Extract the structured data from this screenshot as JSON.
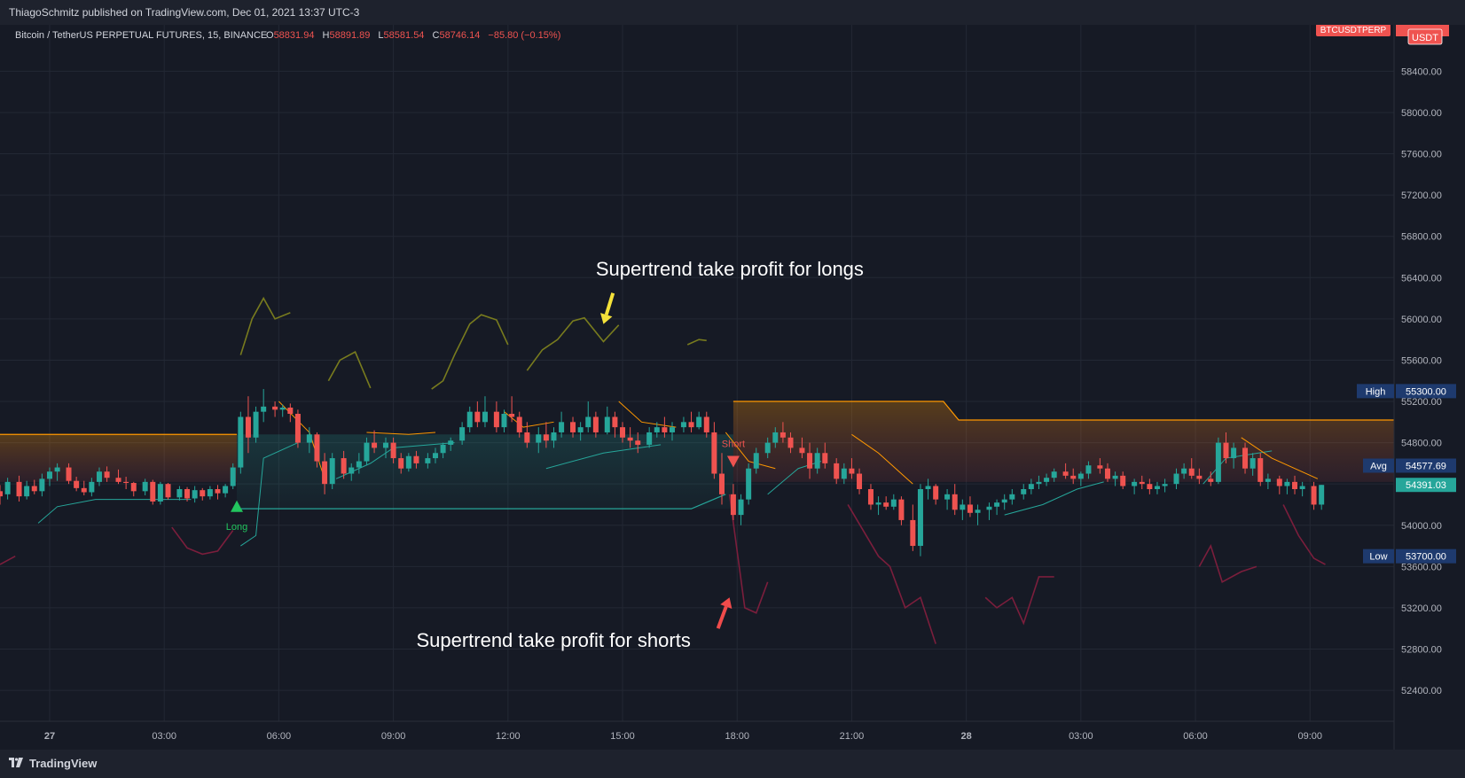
{
  "header": {
    "published": "ThiagoSchmitz published on TradingView.com, Dec 01, 2021 13:37 UTC-3"
  },
  "footer": {
    "brand": "TradingView"
  },
  "colors": {
    "up": "#26a69a",
    "down": "#ef5350",
    "supertrend_up": "#26a69a",
    "supertrend_down": "#ff9800",
    "tp_long": "#787b1e",
    "tp_short": "#7b1e3c",
    "background": "#161a25",
    "grid": "#232834"
  },
  "chart_data": {
    "type": "candlestick",
    "title": "Bitcoin / TetherUS PERPETUAL FUTURES, 15, BINANCE",
    "ohlc_labels": {
      "o_key": "O",
      "o": "58831.94",
      "h_key": "H",
      "h": "58891.89",
      "l_key": "L",
      "l": "58581.54",
      "c_key": "C",
      "c": "58746.14",
      "chg": "−85.80 (−0.15%)"
    },
    "symbol_badge": "BTCUSDTPERP",
    "currency_badge": "USDT",
    "y_ticks": [
      58400,
      58000,
      57600,
      57200,
      56800,
      56400,
      56000,
      55600,
      55200,
      54800,
      54400,
      54000,
      53600,
      53200,
      52800,
      52400
    ],
    "y_tick_labels": [
      "58400.00",
      "58000.00",
      "57600.00",
      "57200.00",
      "56800.00",
      "56400.00",
      "56000.00",
      "55600.00",
      "55200.00",
      "54800.00",
      "54400.00",
      "54000.00",
      "53600.00",
      "53200.00",
      "52800.00",
      "52400.00"
    ],
    "ylim": [
      52100,
      58850
    ],
    "x_ticks": [
      {
        "label": "27",
        "hour": 0
      },
      {
        "label": "03:00",
        "hour": 3
      },
      {
        "label": "06:00",
        "hour": 6
      },
      {
        "label": "09:00",
        "hour": 9
      },
      {
        "label": "12:00",
        "hour": 12
      },
      {
        "label": "15:00",
        "hour": 15
      },
      {
        "label": "18:00",
        "hour": 18
      },
      {
        "label": "21:00",
        "hour": 21
      },
      {
        "label": "28",
        "hour": 24
      },
      {
        "label": "03:00",
        "hour": 27
      },
      {
        "label": "06:00",
        "hour": 30
      },
      {
        "label": "09:00",
        "hour": 33
      }
    ],
    "xlim": [
      -1.3,
      35.2
    ],
    "price_markers": [
      {
        "name": "High",
        "value": 55300,
        "label": "55300.00"
      },
      {
        "name": "Avg",
        "value": 54577.69,
        "label": "54577.69"
      },
      {
        "name": "",
        "value": 54391.03,
        "label": "54391.03",
        "current": true
      },
      {
        "name": "Low",
        "value": 53700,
        "label": "53700.00"
      }
    ],
    "signals": [
      {
        "type": "Long",
        "label": "Long",
        "hour": 4.9,
        "value": 54180
      },
      {
        "type": "Short",
        "label": "Short",
        "hour": 17.9,
        "value": 54620
      }
    ],
    "annotations": [
      {
        "text": "Supertrend take profit for longs",
        "arrow_from": [
          14.75,
          56250
        ],
        "arrow_to": [
          14.5,
          55950
        ]
      },
      {
        "text": "Supertrend take profit for shorts",
        "arrow_from": [
          17.5,
          53000
        ],
        "arrow_to": [
          17.8,
          53300
        ]
      }
    ],
    "step_lines": {
      "orange_upper": [
        [
          -1.3,
          54880
        ],
        [
          4.9,
          54880
        ],
        [
          4.9,
          null
        ],
        [
          17.9,
          null
        ],
        [
          17.9,
          55200
        ],
        [
          23.4,
          55200
        ],
        [
          23.8,
          55020
        ],
        [
          35.2,
          55020
        ]
      ],
      "teal_lower": [
        [
          4.9,
          54160
        ],
        [
          16.8,
          54160
        ],
        [
          17.7,
          54300
        ],
        [
          17.9,
          null
        ]
      ]
    },
    "candles": [
      [
        -1.3,
        54330,
        54390,
        54200,
        54280
      ],
      [
        -1.1,
        54300,
        54460,
        54250,
        54420
      ],
      [
        -0.8,
        54420,
        54480,
        54230,
        54280
      ],
      [
        -0.6,
        54280,
        54430,
        54250,
        54380
      ],
      [
        -0.4,
        54380,
        54440,
        54300,
        54330
      ],
      [
        -0.2,
        54330,
        54500,
        54280,
        54450
      ],
      [
        0.0,
        54450,
        54560,
        54380,
        54520
      ],
      [
        0.2,
        54520,
        54600,
        54430,
        54560
      ],
      [
        0.5,
        54560,
        54600,
        54400,
        54430
      ],
      [
        0.7,
        54430,
        54470,
        54330,
        54360
      ],
      [
        0.9,
        54360,
        54430,
        54290,
        54320
      ],
      [
        1.1,
        54320,
        54460,
        54280,
        54420
      ],
      [
        1.3,
        54420,
        54560,
        54380,
        54520
      ],
      [
        1.5,
        54520,
        54570,
        54420,
        54460
      ],
      [
        1.8,
        54460,
        54540,
        54400,
        54420
      ],
      [
        2.0,
        54420,
        54470,
        54350,
        54410
      ],
      [
        2.2,
        54410,
        54420,
        54280,
        54330
      ],
      [
        2.5,
        54330,
        54450,
        54290,
        54420
      ],
      [
        2.7,
        54420,
        54440,
        54200,
        54230
      ],
      [
        2.9,
        54230,
        54420,
        54200,
        54400
      ],
      [
        3.1,
        54400,
        54410,
        54250,
        54270
      ],
      [
        3.4,
        54270,
        54380,
        54240,
        54350
      ],
      [
        3.6,
        54350,
        54370,
        54230,
        54260
      ],
      [
        3.8,
        54260,
        54380,
        54220,
        54340
      ],
      [
        4.0,
        54340,
        54360,
        54240,
        54280
      ],
      [
        4.2,
        54280,
        54380,
        54250,
        54350
      ],
      [
        4.4,
        54350,
        54390,
        54250,
        54310
      ],
      [
        4.6,
        54310,
        54400,
        54270,
        54380
      ],
      [
        4.8,
        54380,
        54600,
        54350,
        54560
      ],
      [
        5.0,
        54560,
        55100,
        54500,
        55050
      ],
      [
        5.2,
        55050,
        55250,
        54700,
        54850
      ],
      [
        5.4,
        54850,
        55150,
        54800,
        55100
      ],
      [
        5.6,
        55100,
        55320,
        55000,
        55150
      ],
      [
        5.9,
        55150,
        55200,
        55050,
        55120
      ],
      [
        6.1,
        55120,
        55170,
        55050,
        55140
      ],
      [
        6.3,
        55140,
        55180,
        55000,
        55080
      ],
      [
        6.5,
        55080,
        55120,
        54750,
        54800
      ],
      [
        6.8,
        54800,
        54950,
        54700,
        54880
      ],
      [
        7.0,
        54880,
        54900,
        54560,
        54620
      ],
      [
        7.2,
        54620,
        54700,
        54300,
        54400
      ],
      [
        7.4,
        54400,
        54700,
        54350,
        54650
      ],
      [
        7.7,
        54650,
        54720,
        54450,
        54500
      ],
      [
        7.9,
        54500,
        54600,
        54430,
        54560
      ],
      [
        8.1,
        54560,
        54700,
        54500,
        54620
      ],
      [
        8.3,
        54620,
        54850,
        54580,
        54800
      ],
      [
        8.5,
        54800,
        54920,
        54700,
        54750
      ],
      [
        8.8,
        54750,
        54850,
        54650,
        54800
      ],
      [
        9.0,
        54800,
        54850,
        54600,
        54650
      ],
      [
        9.2,
        54650,
        54700,
        54500,
        54550
      ],
      [
        9.4,
        54550,
        54700,
        54520,
        54670
      ],
      [
        9.6,
        54670,
        54720,
        54550,
        54600
      ],
      [
        9.9,
        54600,
        54700,
        54550,
        54650
      ],
      [
        10.1,
        54650,
        54750,
        54600,
        54700
      ],
      [
        10.3,
        54700,
        54800,
        54650,
        54780
      ],
      [
        10.5,
        54780,
        54850,
        54720,
        54820
      ],
      [
        10.8,
        54820,
        55000,
        54780,
        54950
      ],
      [
        11.0,
        54950,
        55150,
        54900,
        55100
      ],
      [
        11.2,
        55100,
        55200,
        54950,
        55000
      ],
      [
        11.4,
        55000,
        55250,
        54950,
        55100
      ],
      [
        11.7,
        55100,
        55200,
        54900,
        54950
      ],
      [
        11.9,
        54950,
        55120,
        54900,
        55080
      ],
      [
        12.1,
        55080,
        55250,
        55000,
        55050
      ],
      [
        12.3,
        55050,
        55100,
        54850,
        54900
      ],
      [
        12.5,
        54900,
        55000,
        54750,
        54800
      ],
      [
        12.8,
        54800,
        54950,
        54700,
        54880
      ],
      [
        13.0,
        54880,
        55000,
        54750,
        54820
      ],
      [
        13.2,
        54820,
        54950,
        54750,
        54900
      ],
      [
        13.4,
        54900,
        55100,
        54850,
        55000
      ],
      [
        13.7,
        55000,
        55050,
        54850,
        54900
      ],
      [
        13.9,
        54900,
        55000,
        54820,
        54950
      ],
      [
        14.1,
        54950,
        55200,
        54900,
        55050
      ],
      [
        14.3,
        55050,
        55100,
        54850,
        54900
      ],
      [
        14.6,
        54900,
        55150,
        54880,
        55050
      ],
      [
        14.8,
        55050,
        55100,
        54850,
        54950
      ],
      [
        15.0,
        54950,
        55000,
        54800,
        54850
      ],
      [
        15.2,
        54850,
        54950,
        54750,
        54820
      ],
      [
        15.4,
        54820,
        54900,
        54700,
        54780
      ],
      [
        15.7,
        54780,
        54950,
        54750,
        54900
      ],
      [
        15.9,
        54900,
        55000,
        54850,
        54950
      ],
      [
        16.1,
        54950,
        55050,
        54850,
        54900
      ],
      [
        16.3,
        54900,
        55000,
        54820,
        54950
      ],
      [
        16.6,
        54950,
        55050,
        54900,
        55000
      ],
      [
        16.8,
        55000,
        55100,
        54900,
        54950
      ],
      [
        17.0,
        54950,
        55100,
        54930,
        55050
      ],
      [
        17.2,
        55050,
        55100,
        54850,
        54900
      ],
      [
        17.4,
        54900,
        55000,
        54450,
        54500
      ],
      [
        17.6,
        54500,
        54700,
        54200,
        54300
      ],
      [
        17.9,
        54300,
        54400,
        54050,
        54100
      ],
      [
        18.1,
        54100,
        54300,
        54000,
        54250
      ],
      [
        18.3,
        54250,
        54600,
        54200,
        54550
      ],
      [
        18.5,
        54550,
        54750,
        54500,
        54700
      ],
      [
        18.8,
        54700,
        54850,
        54650,
        54800
      ],
      [
        19.0,
        54800,
        54950,
        54750,
        54900
      ],
      [
        19.2,
        54900,
        55000,
        54800,
        54850
      ],
      [
        19.4,
        54850,
        54900,
        54700,
        54750
      ],
      [
        19.7,
        54750,
        54850,
        54650,
        54700
      ],
      [
        19.9,
        54700,
        54800,
        54450,
        54550
      ],
      [
        20.1,
        54550,
        54750,
        54500,
        54700
      ],
      [
        20.3,
        54700,
        54800,
        54550,
        54600
      ],
      [
        20.6,
        54600,
        54650,
        54400,
        54450
      ],
      [
        20.8,
        54450,
        54600,
        54400,
        54550
      ],
      [
        21.0,
        54550,
        54650,
        54450,
        54500
      ],
      [
        21.2,
        54500,
        54550,
        54300,
        54350
      ],
      [
        21.5,
        54350,
        54400,
        54150,
        54200
      ],
      [
        21.7,
        54200,
        54280,
        54100,
        54220
      ],
      [
        21.9,
        54220,
        54280,
        54150,
        54180
      ],
      [
        22.1,
        54180,
        54300,
        54150,
        54250
      ],
      [
        22.3,
        54250,
        54280,
        54000,
        54050
      ],
      [
        22.6,
        54050,
        54200,
        53750,
        53800
      ],
      [
        22.8,
        53800,
        54400,
        53700,
        54350
      ],
      [
        23.0,
        54350,
        54450,
        54250,
        54380
      ],
      [
        23.2,
        54380,
        54400,
        54200,
        54250
      ],
      [
        23.5,
        54250,
        54350,
        54150,
        54300
      ],
      [
        23.7,
        54300,
        54400,
        54100,
        54150
      ],
      [
        23.9,
        54150,
        54250,
        54050,
        54200
      ],
      [
        24.1,
        54200,
        54280,
        54080,
        54120
      ],
      [
        24.3,
        54120,
        54200,
        54000,
        54150
      ],
      [
        24.6,
        54150,
        54220,
        54050,
        54180
      ],
      [
        24.8,
        54180,
        54250,
        54100,
        54220
      ],
      [
        25.0,
        54220,
        54300,
        54150,
        54250
      ],
      [
        25.2,
        54250,
        54350,
        54200,
        54300
      ],
      [
        25.5,
        54300,
        54400,
        54250,
        54350
      ],
      [
        25.7,
        54350,
        54450,
        54300,
        54400
      ],
      [
        25.9,
        54400,
        54480,
        54350,
        54420
      ],
      [
        26.1,
        54420,
        54500,
        54380,
        54460
      ],
      [
        26.3,
        54460,
        54550,
        54420,
        54520
      ],
      [
        26.6,
        54520,
        54600,
        54450,
        54480
      ],
      [
        26.8,
        54480,
        54550,
        54400,
        54450
      ],
      [
        27.0,
        54450,
        54520,
        54380,
        54500
      ],
      [
        27.2,
        54500,
        54620,
        54450,
        54580
      ],
      [
        27.5,
        54580,
        54650,
        54500,
        54550
      ],
      [
        27.7,
        54550,
        54600,
        54420,
        54450
      ],
      [
        27.9,
        54450,
        54520,
        54380,
        54480
      ],
      [
        28.1,
        54480,
        54520,
        54350,
        54380
      ],
      [
        28.4,
        54380,
        54450,
        54300,
        54420
      ],
      [
        28.6,
        54420,
        54480,
        54350,
        54400
      ],
      [
        28.8,
        54400,
        54450,
        54300,
        54350
      ],
      [
        29.0,
        54350,
        54420,
        54300,
        54380
      ],
      [
        29.2,
        54380,
        54450,
        54320,
        54400
      ],
      [
        29.5,
        54400,
        54550,
        54350,
        54500
      ],
      [
        29.7,
        54500,
        54600,
        54450,
        54550
      ],
      [
        29.9,
        54550,
        54650,
        54450,
        54480
      ],
      [
        30.1,
        54480,
        54550,
        54400,
        54450
      ],
      [
        30.4,
        54450,
        54520,
        54380,
        54420
      ],
      [
        30.6,
        54420,
        54850,
        54400,
        54800
      ],
      [
        30.8,
        54800,
        54900,
        54600,
        54650
      ],
      [
        31.0,
        54650,
        54800,
        54550,
        54750
      ],
      [
        31.3,
        54750,
        54800,
        54500,
        54550
      ],
      [
        31.5,
        54550,
        54700,
        54480,
        54650
      ],
      [
        31.7,
        54650,
        54700,
        54380,
        54420
      ],
      [
        31.9,
        54420,
        54500,
        54350,
        54450
      ],
      [
        32.2,
        54450,
        54480,
        54300,
        54380
      ],
      [
        32.4,
        54380,
        54450,
        54300,
        54420
      ],
      [
        32.6,
        54420,
        54480,
        54300,
        54350
      ],
      [
        32.8,
        54350,
        54420,
        54280,
        54380
      ],
      [
        33.1,
        54380,
        54420,
        54150,
        54200
      ],
      [
        33.3,
        54200,
        54391,
        54150,
        54391
      ]
    ]
  }
}
